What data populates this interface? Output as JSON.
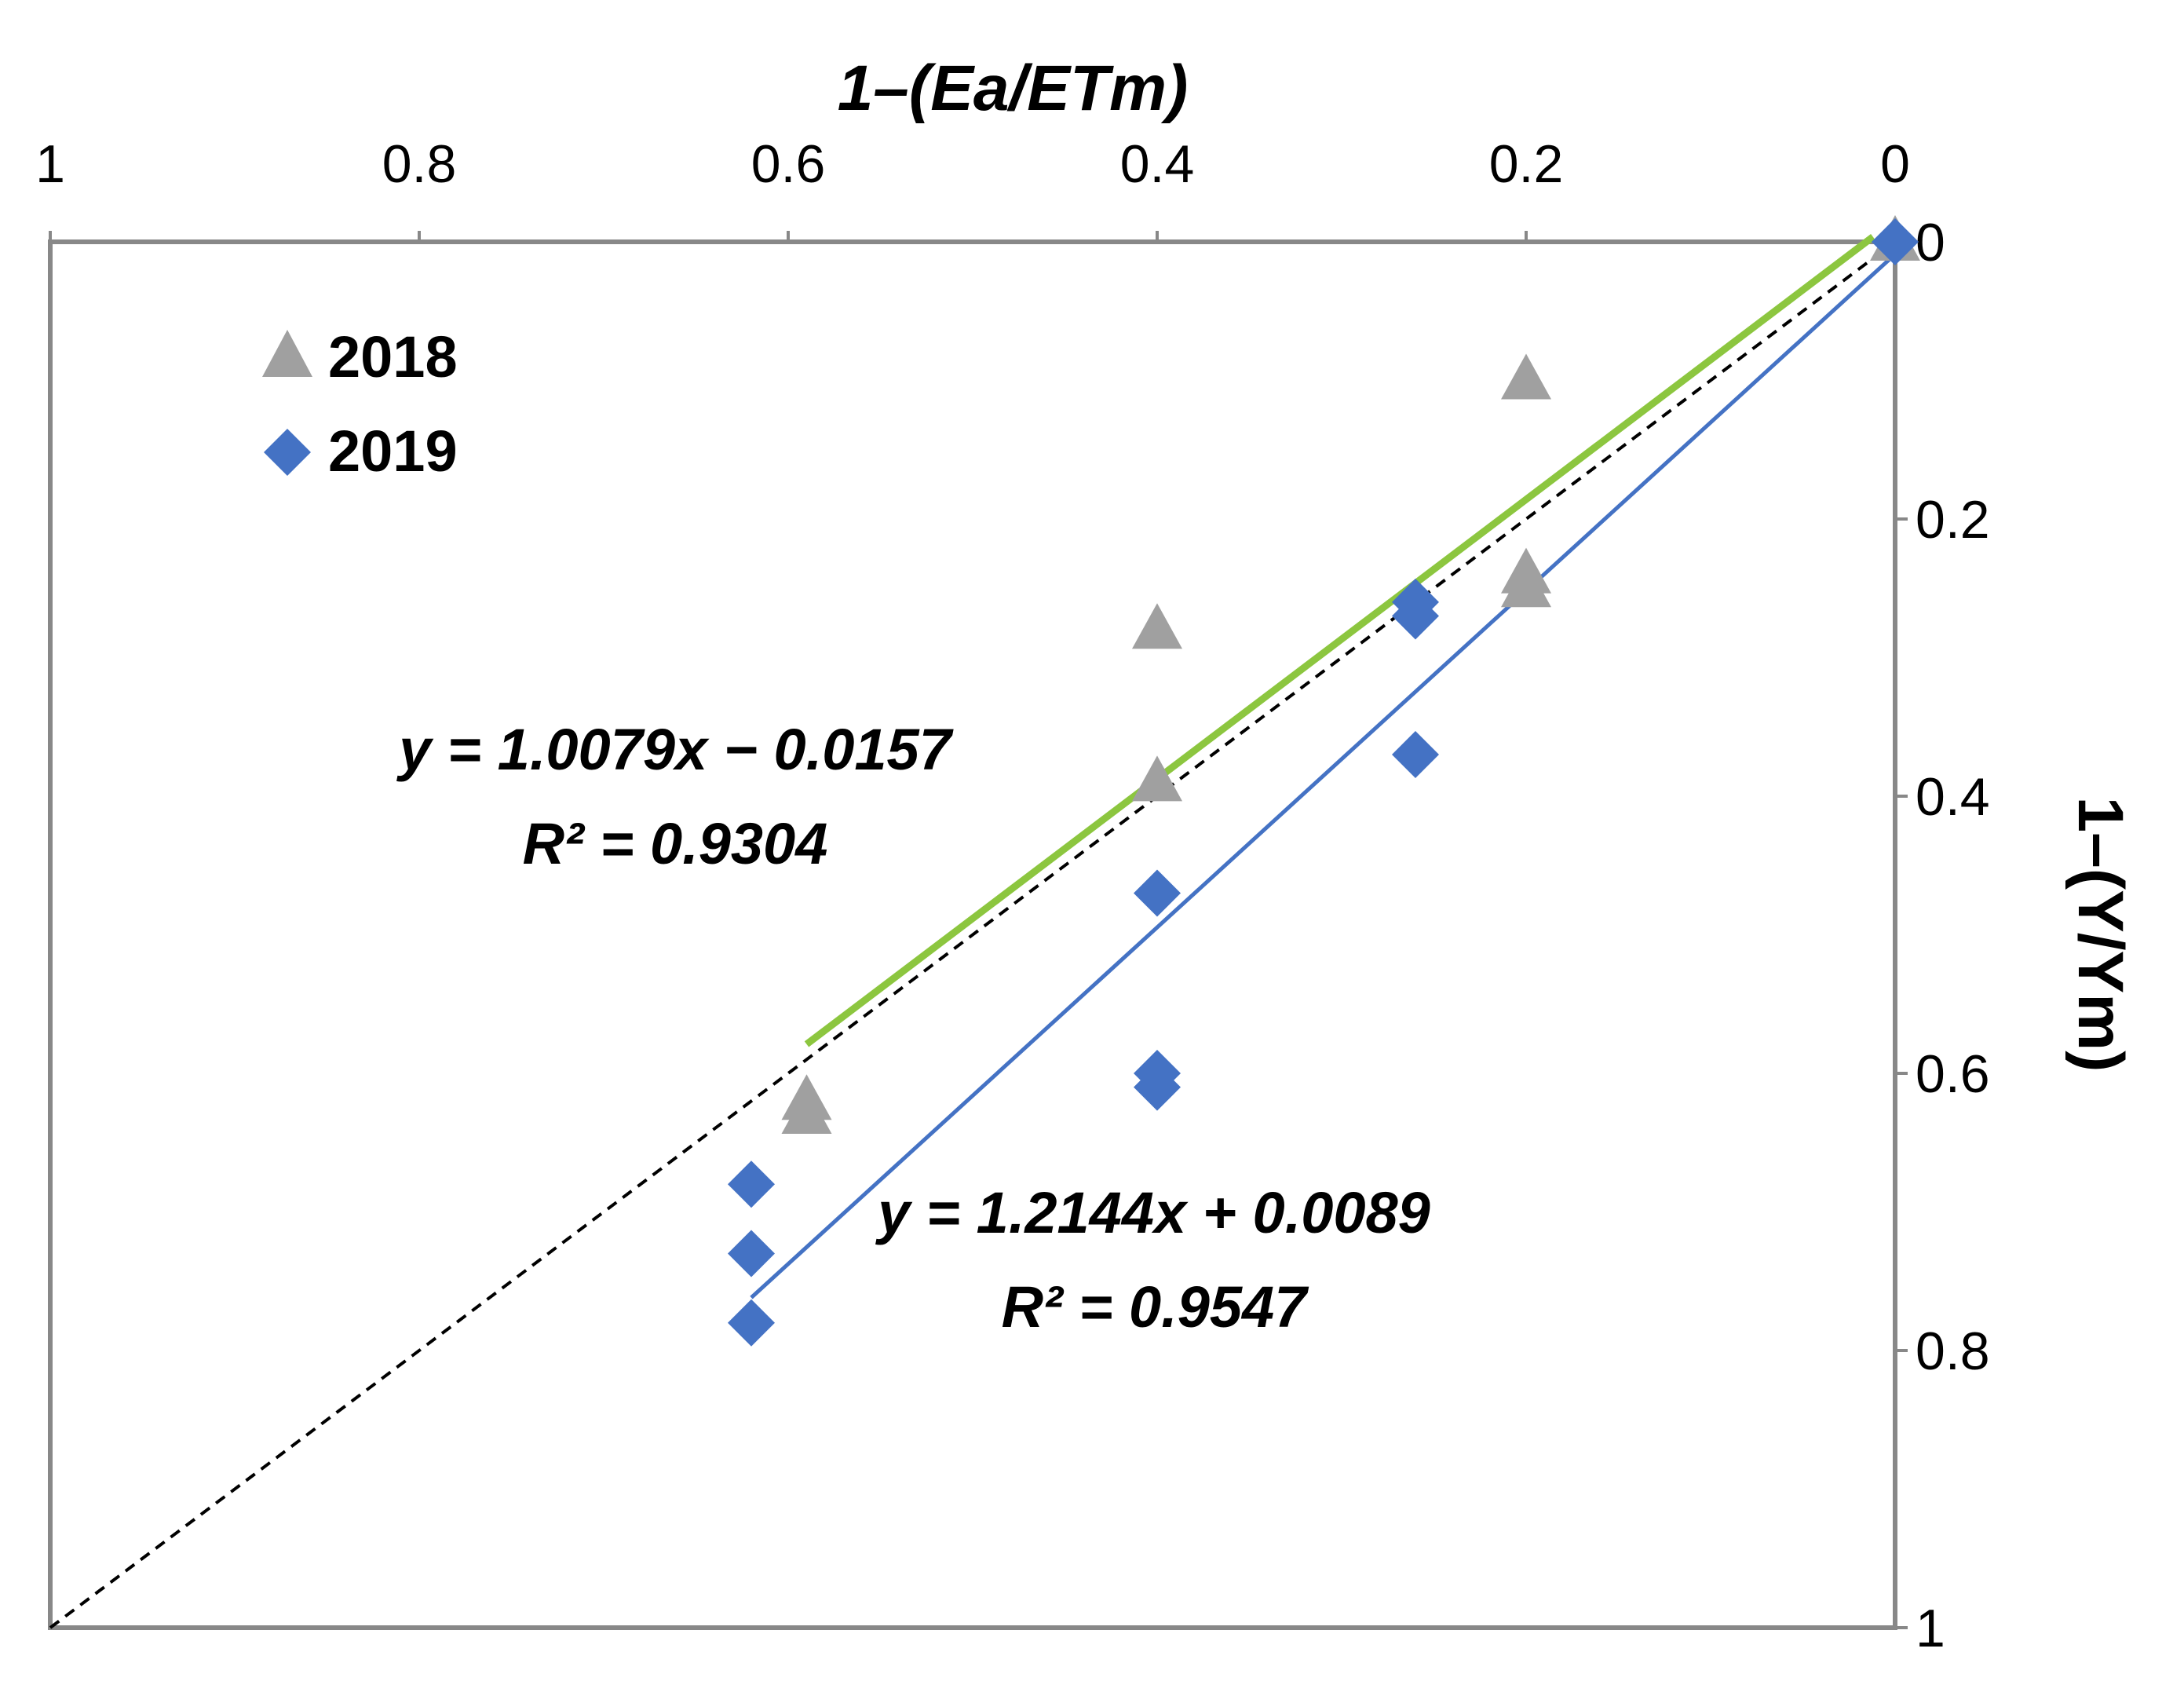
{
  "chart_data": {
    "type": "scatter",
    "x_axis": {
      "label": "1–(Ea/ETm)",
      "position": "top",
      "range": [
        1,
        0
      ],
      "reversed": true,
      "ticks": [
        {
          "value": 1,
          "label": "1"
        },
        {
          "value": 0.8,
          "label": "0.8"
        },
        {
          "value": 0.6,
          "label": "0.6"
        },
        {
          "value": 0.4,
          "label": "0.4"
        },
        {
          "value": 0.2,
          "label": "0.2"
        },
        {
          "value": 0,
          "label": "0"
        }
      ]
    },
    "y_axis": {
      "label": "1–(Y/Ym)",
      "position": "right",
      "range": [
        0,
        1
      ],
      "inverted": true,
      "ticks": [
        {
          "value": 0,
          "label": "0"
        },
        {
          "value": 0.2,
          "label": "0.2"
        },
        {
          "value": 0.4,
          "label": "0.4"
        },
        {
          "value": 0.6,
          "label": "0.6"
        },
        {
          "value": 0.8,
          "label": "0.8"
        },
        {
          "value": 1,
          "label": "1"
        }
      ]
    },
    "grid": false,
    "legend_position": "top-left",
    "series": [
      {
        "name": "2018",
        "marker": "triangle",
        "color": "#A0A0A0",
        "points": [
          {
            "x": 0,
            "y": 0
          },
          {
            "x": 0.2,
            "y": 0.1
          },
          {
            "x": 0.2,
            "y": 0.24
          },
          {
            "x": 0.2,
            "y": 0.25
          },
          {
            "x": 0.4,
            "y": 0.28
          },
          {
            "x": 0.4,
            "y": 0.39
          },
          {
            "x": 0.59,
            "y": 0.62
          },
          {
            "x": 0.59,
            "y": 0.63
          }
        ],
        "trendline": {
          "slope": 1.0079,
          "intercept": -0.0157,
          "x_from": 0.59,
          "x_to": 0.012,
          "color": "#8CC63F"
        },
        "equation": "y = 1.0079x − 0.0157",
        "r_squared": "R² = 0.9304"
      },
      {
        "name": "2019",
        "marker": "diamond",
        "color": "#4472C4",
        "points": [
          {
            "x": 0,
            "y": 0
          },
          {
            "x": 0.26,
            "y": 0.26
          },
          {
            "x": 0.26,
            "y": 0.27
          },
          {
            "x": 0.26,
            "y": 0.37
          },
          {
            "x": 0.4,
            "y": 0.47
          },
          {
            "x": 0.4,
            "y": 0.6
          },
          {
            "x": 0.4,
            "y": 0.61
          },
          {
            "x": 0.62,
            "y": 0.68
          },
          {
            "x": 0.62,
            "y": 0.73
          },
          {
            "x": 0.62,
            "y": 0.78
          }
        ],
        "trendline": {
          "slope": 1.2144,
          "intercept": 0.0089,
          "x_from": 0.62,
          "x_to": 0,
          "color": "#4472C4"
        },
        "equation": "y = 1.2144x + 0.0089",
        "r_squared": "R² = 0.9547"
      }
    ],
    "reference_line": {
      "name": "1:1 line",
      "style": "dashed",
      "color": "#000000",
      "from": [
        1,
        1
      ],
      "to": [
        0,
        0
      ]
    }
  }
}
